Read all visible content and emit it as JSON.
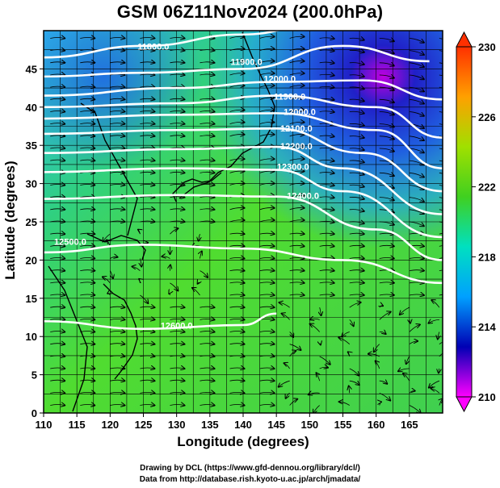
{
  "title": "GSM 06Z11Nov2024 (200.0hPa)",
  "xlabel": "Longitude (degrees)",
  "ylabel": "Latitude (degrees)",
  "credits": [
    "Drawing by DCL (https://www.gfd-dennou.org/library/dcl/)",
    "Data from http://database.rish.kyoto-u.ac.jp/arch/jmadata/"
  ],
  "map": {
    "lon_range": [
      110,
      170
    ],
    "lat_range": [
      0,
      50
    ],
    "x_ticks": [
      110,
      115,
      120,
      125,
      130,
      135,
      140,
      145,
      150,
      155,
      160,
      165
    ],
    "y_ticks": [
      0,
      5,
      10,
      15,
      20,
      25,
      30,
      35,
      40,
      45
    ],
    "grid_spacing_deg": 2.5
  },
  "colorbar": {
    "min": 210,
    "max": 230,
    "ticks": [
      210,
      214,
      218,
      222,
      226,
      230
    ],
    "colors": [
      "#ff00ff",
      "#0000b4",
      "#00a0ff",
      "#00e0c0",
      "#40d020",
      "#a0e000",
      "#ffa000",
      "#ff3000"
    ]
  },
  "contours": [
    {
      "label": "11800.0",
      "lat_at_lon": [
        [
          110,
          46.5
        ],
        [
          125,
          48.0
        ],
        [
          140,
          49.5
        ],
        [
          150,
          50.5
        ]
      ]
    },
    {
      "label": "11900.0",
      "lat_at_lon": [
        [
          110,
          44.0
        ],
        [
          125,
          44.5
        ],
        [
          140,
          45.0
        ],
        [
          155,
          48.0
        ],
        [
          168,
          46.0
        ]
      ]
    },
    {
      "label": "12000.0",
      "lat_at_lon": [
        [
          110,
          41.5
        ],
        [
          130,
          42.5
        ],
        [
          145,
          43.3
        ],
        [
          158,
          43.5
        ],
        [
          170,
          41.0
        ]
      ]
    },
    {
      "label": "11900.0",
      "lat_at_lon": [
        [
          110,
          40.0
        ],
        [
          130,
          40.5
        ],
        [
          145,
          41.5
        ],
        [
          160,
          40.0
        ],
        [
          170,
          36.0
        ]
      ]
    },
    {
      "label": "12000.0",
      "lat_at_lon": [
        [
          110,
          38.5
        ],
        [
          130,
          39.0
        ],
        [
          145,
          39.2
        ],
        [
          160,
          37.0
        ],
        [
          170,
          32.0
        ]
      ]
    },
    {
      "label": "12100.0",
      "lat_at_lon": [
        [
          110,
          36.5
        ],
        [
          130,
          37.0
        ],
        [
          145,
          37.2
        ],
        [
          158,
          34.0
        ],
        [
          170,
          29.0
        ]
      ]
    },
    {
      "label": "12200.0",
      "lat_at_lon": [
        [
          110,
          34.0
        ],
        [
          130,
          34.5
        ],
        [
          145,
          34.8
        ],
        [
          155,
          32.0
        ],
        [
          170,
          26.0
        ]
      ]
    },
    {
      "label": "12300.0",
      "lat_at_lon": [
        [
          110,
          31.5
        ],
        [
          130,
          32.0
        ],
        [
          145,
          31.8
        ],
        [
          155,
          29.0
        ],
        [
          170,
          23.0
        ]
      ]
    },
    {
      "label": "12400.0",
      "lat_at_lon": [
        [
          110,
          28.0
        ],
        [
          130,
          28.5
        ],
        [
          145,
          28.3
        ],
        [
          160,
          24.0
        ],
        [
          170,
          20.0
        ]
      ]
    },
    {
      "label": "12500.0",
      "lat_at_lon": [
        [
          110,
          21.0
        ],
        [
          125,
          22.0
        ],
        [
          140,
          21.5
        ],
        [
          155,
          20.0
        ],
        [
          170,
          17.0
        ]
      ]
    },
    {
      "label": "12600.0",
      "lat_at_lon": [
        [
          110,
          12.0
        ],
        [
          125,
          11.0
        ],
        [
          140,
          11.5
        ],
        [
          145,
          13.0
        ]
      ]
    }
  ],
  "contour_labels": [
    {
      "text": "11800.0",
      "lon": 126.5,
      "lat": 47.5
    },
    {
      "text": "11900.0",
      "lon": 140.5,
      "lat": 45.5
    },
    {
      "text": "12000.0",
      "lon": 145.5,
      "lat": 43.3
    },
    {
      "text": "11900.0",
      "lon": 147.0,
      "lat": 41.0
    },
    {
      "text": "12000.0",
      "lon": 148.5,
      "lat": 39.0
    },
    {
      "text": "12100.0",
      "lon": 148.0,
      "lat": 36.8
    },
    {
      "text": "12200.0",
      "lon": 148.0,
      "lat": 34.5
    },
    {
      "text": "12300.0",
      "lon": 147.5,
      "lat": 31.8
    },
    {
      "text": "12400.0",
      "lon": 149.0,
      "lat": 28.0
    },
    {
      "text": "12500.0",
      "lon": 114.0,
      "lat": 22.0
    },
    {
      "text": "12600.0",
      "lon": 130.0,
      "lat": 11.0
    }
  ]
}
